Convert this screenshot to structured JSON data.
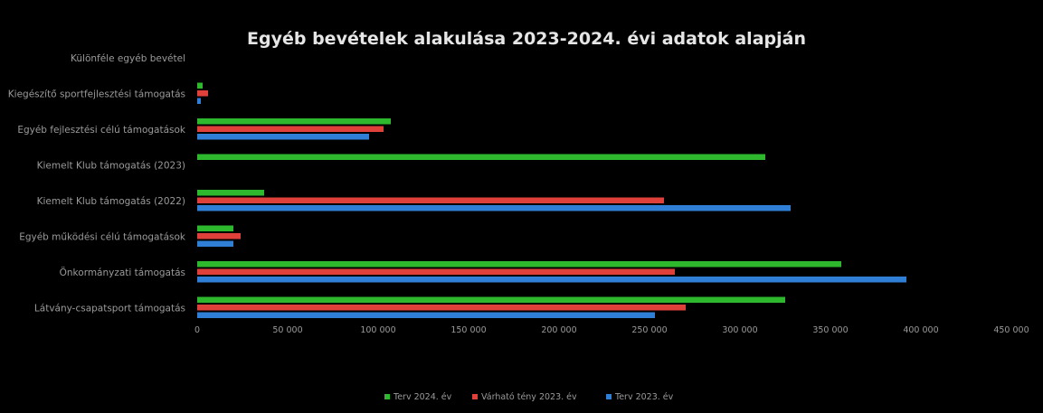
{
  "chart_data": {
    "type": "bar",
    "orientation": "horizontal",
    "title": "Egyéb bevételek alakulása 2023-2024. évi adatok alapján",
    "categories": [
      "Különféle egyéb bevétel",
      "Kiegészítő sportfejlesztési támogatás",
      "Egyéb fejlesztési célú támogatások",
      "Kiemelt Klub támogatás (2023)",
      "Kiemelt Klub támogatás (2022)",
      "Egyéb működési célú támogatások",
      "Önkormányzati támogatás",
      "Látvány-csapatsport támogatás"
    ],
    "series": [
      {
        "name": "Terv 2024. év",
        "color": "#2eb82e",
        "values": [
          0,
          3000,
          107000,
          314000,
          37000,
          20000,
          356000,
          325000
        ]
      },
      {
        "name": "Várható tény 2023. év",
        "color": "#e0403a",
        "values": [
          0,
          6000,
          103000,
          0,
          258000,
          24000,
          264000,
          270000
        ]
      },
      {
        "name": "Terv 2023. év",
        "color": "#2f7fd6",
        "values": [
          0,
          2000,
          95000,
          0,
          328000,
          20000,
          392000,
          253000
        ]
      }
    ],
    "xlim": [
      0,
      450000
    ],
    "xticks": [
      0,
      50000,
      100000,
      150000,
      200000,
      250000,
      300000,
      350000,
      400000,
      450000
    ],
    "xtick_labels": [
      "0",
      "50 000",
      "100 000",
      "150 000",
      "200 000",
      "250 000",
      "300 000",
      "350 000",
      "400 000",
      "450 000"
    ],
    "legend_position": "bottom",
    "grid": false
  }
}
